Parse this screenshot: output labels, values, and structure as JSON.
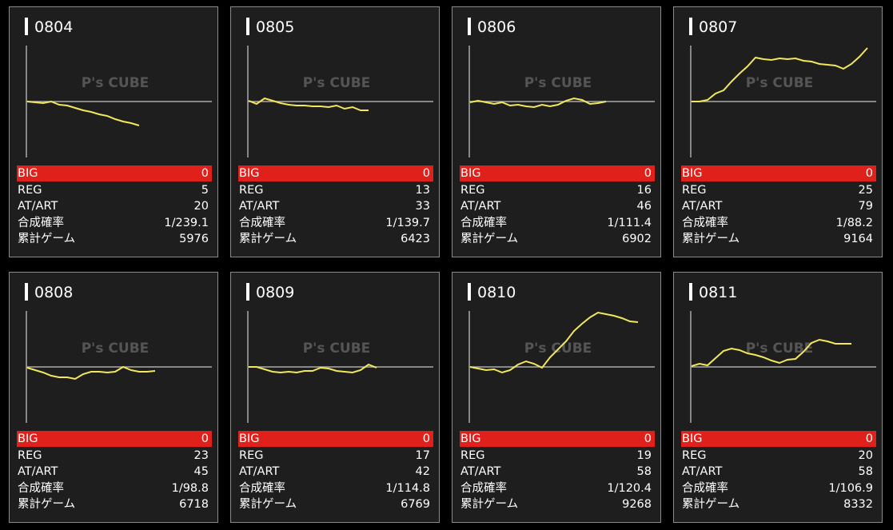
{
  "watermark": "P's CUBE",
  "stat_labels": [
    "BIG",
    "REG",
    "AT/ART",
    "合成確率",
    "累計ゲーム"
  ],
  "ylim": [
    -70,
    70
  ],
  "panels": [
    {
      "title": "0804",
      "stats": [
        0,
        5,
        20,
        "1/239.1",
        5976
      ],
      "line": [
        0,
        -1,
        -2,
        0,
        -4,
        -5,
        -8,
        -11,
        -13,
        -16,
        -18,
        -22,
        -25,
        -27,
        -30
      ]
    },
    {
      "title": "0805",
      "stats": [
        0,
        13,
        33,
        "1/139.7",
        6423
      ],
      "line": [
        1,
        -3,
        4,
        1,
        -2,
        -4,
        -5,
        -5,
        -6,
        -6,
        -7,
        -5,
        -9,
        -7,
        -11,
        -11
      ]
    },
    {
      "title": "0806",
      "stats": [
        0,
        16,
        46,
        "1/111.4",
        6902
      ],
      "line": [
        -1,
        1,
        -1,
        -3,
        -1,
        -5,
        -4,
        -6,
        -7,
        -4,
        -6,
        -4,
        1,
        4,
        2,
        -3,
        -2,
        0
      ]
    },
    {
      "title": "0807",
      "stats": [
        0,
        25,
        79,
        "1/88.2",
        9164
      ],
      "line": [
        0,
        0,
        2,
        10,
        14,
        25,
        35,
        44,
        55,
        53,
        52,
        54,
        53,
        54,
        51,
        50,
        47,
        46,
        45,
        41,
        47,
        56,
        67
      ]
    },
    {
      "title": "0808",
      "stats": [
        0,
        23,
        45,
        "1/98.8",
        6718
      ],
      "line": [
        -1,
        -4,
        -7,
        -11,
        -13,
        -13,
        -15,
        -9,
        -6,
        -6,
        -7,
        -6,
        0,
        -4,
        -6,
        -6,
        -5
      ]
    },
    {
      "title": "0809",
      "stats": [
        0,
        17,
        42,
        "1/114.8",
        6769
      ],
      "line": [
        0,
        0,
        -3,
        -6,
        -7,
        -6,
        -7,
        -5,
        -5,
        -1,
        -2,
        -5,
        -6,
        -7,
        -4,
        3,
        -1
      ]
    },
    {
      "title": "0810",
      "stats": [
        0,
        19,
        58,
        "1/120.4",
        9268
      ],
      "line": [
        0,
        -2,
        -4,
        -3,
        -7,
        -4,
        3,
        7,
        4,
        -1,
        12,
        22,
        32,
        45,
        54,
        62,
        68,
        66,
        64,
        61,
        57,
        56
      ]
    },
    {
      "title": "0811",
      "stats": [
        0,
        20,
        58,
        "1/106.9",
        8332
      ],
      "line": [
        1,
        4,
        2,
        11,
        20,
        23,
        21,
        17,
        15,
        12,
        8,
        5,
        9,
        10,
        19,
        30,
        34,
        32,
        29,
        29,
        29
      ]
    }
  ]
}
